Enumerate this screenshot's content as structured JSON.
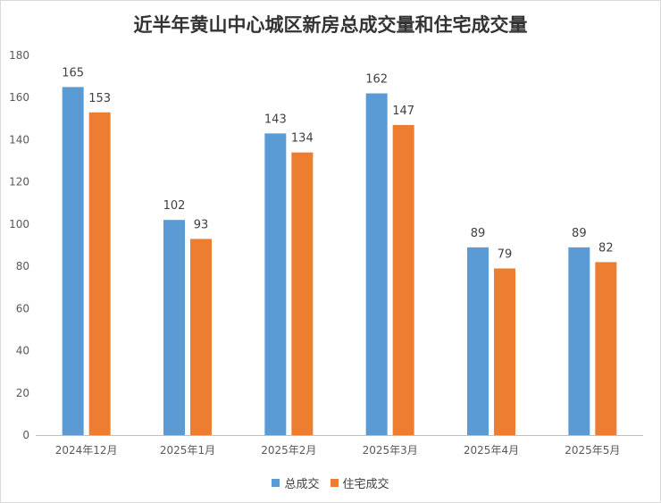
{
  "chart_data": {
    "type": "bar",
    "title": "近半年黄山中心城区新房总成交量和住宅成交量",
    "categories": [
      "2024年12月",
      "2025年1月",
      "2025年2月",
      "2025年3月",
      "2025年4月",
      "2025年5月"
    ],
    "series": [
      {
        "name": "总成交",
        "color": "#5b9bd5",
        "values": [
          165,
          102,
          143,
          162,
          89,
          89
        ]
      },
      {
        "name": "住宅成交",
        "color": "#ed7d31",
        "values": [
          153,
          93,
          134,
          147,
          79,
          82
        ]
      }
    ],
    "ylim": [
      0,
      180
    ],
    "yticks": [
      0,
      20,
      40,
      60,
      80,
      100,
      120,
      140,
      160,
      180
    ],
    "grid": false,
    "legend_position": "bottom"
  }
}
